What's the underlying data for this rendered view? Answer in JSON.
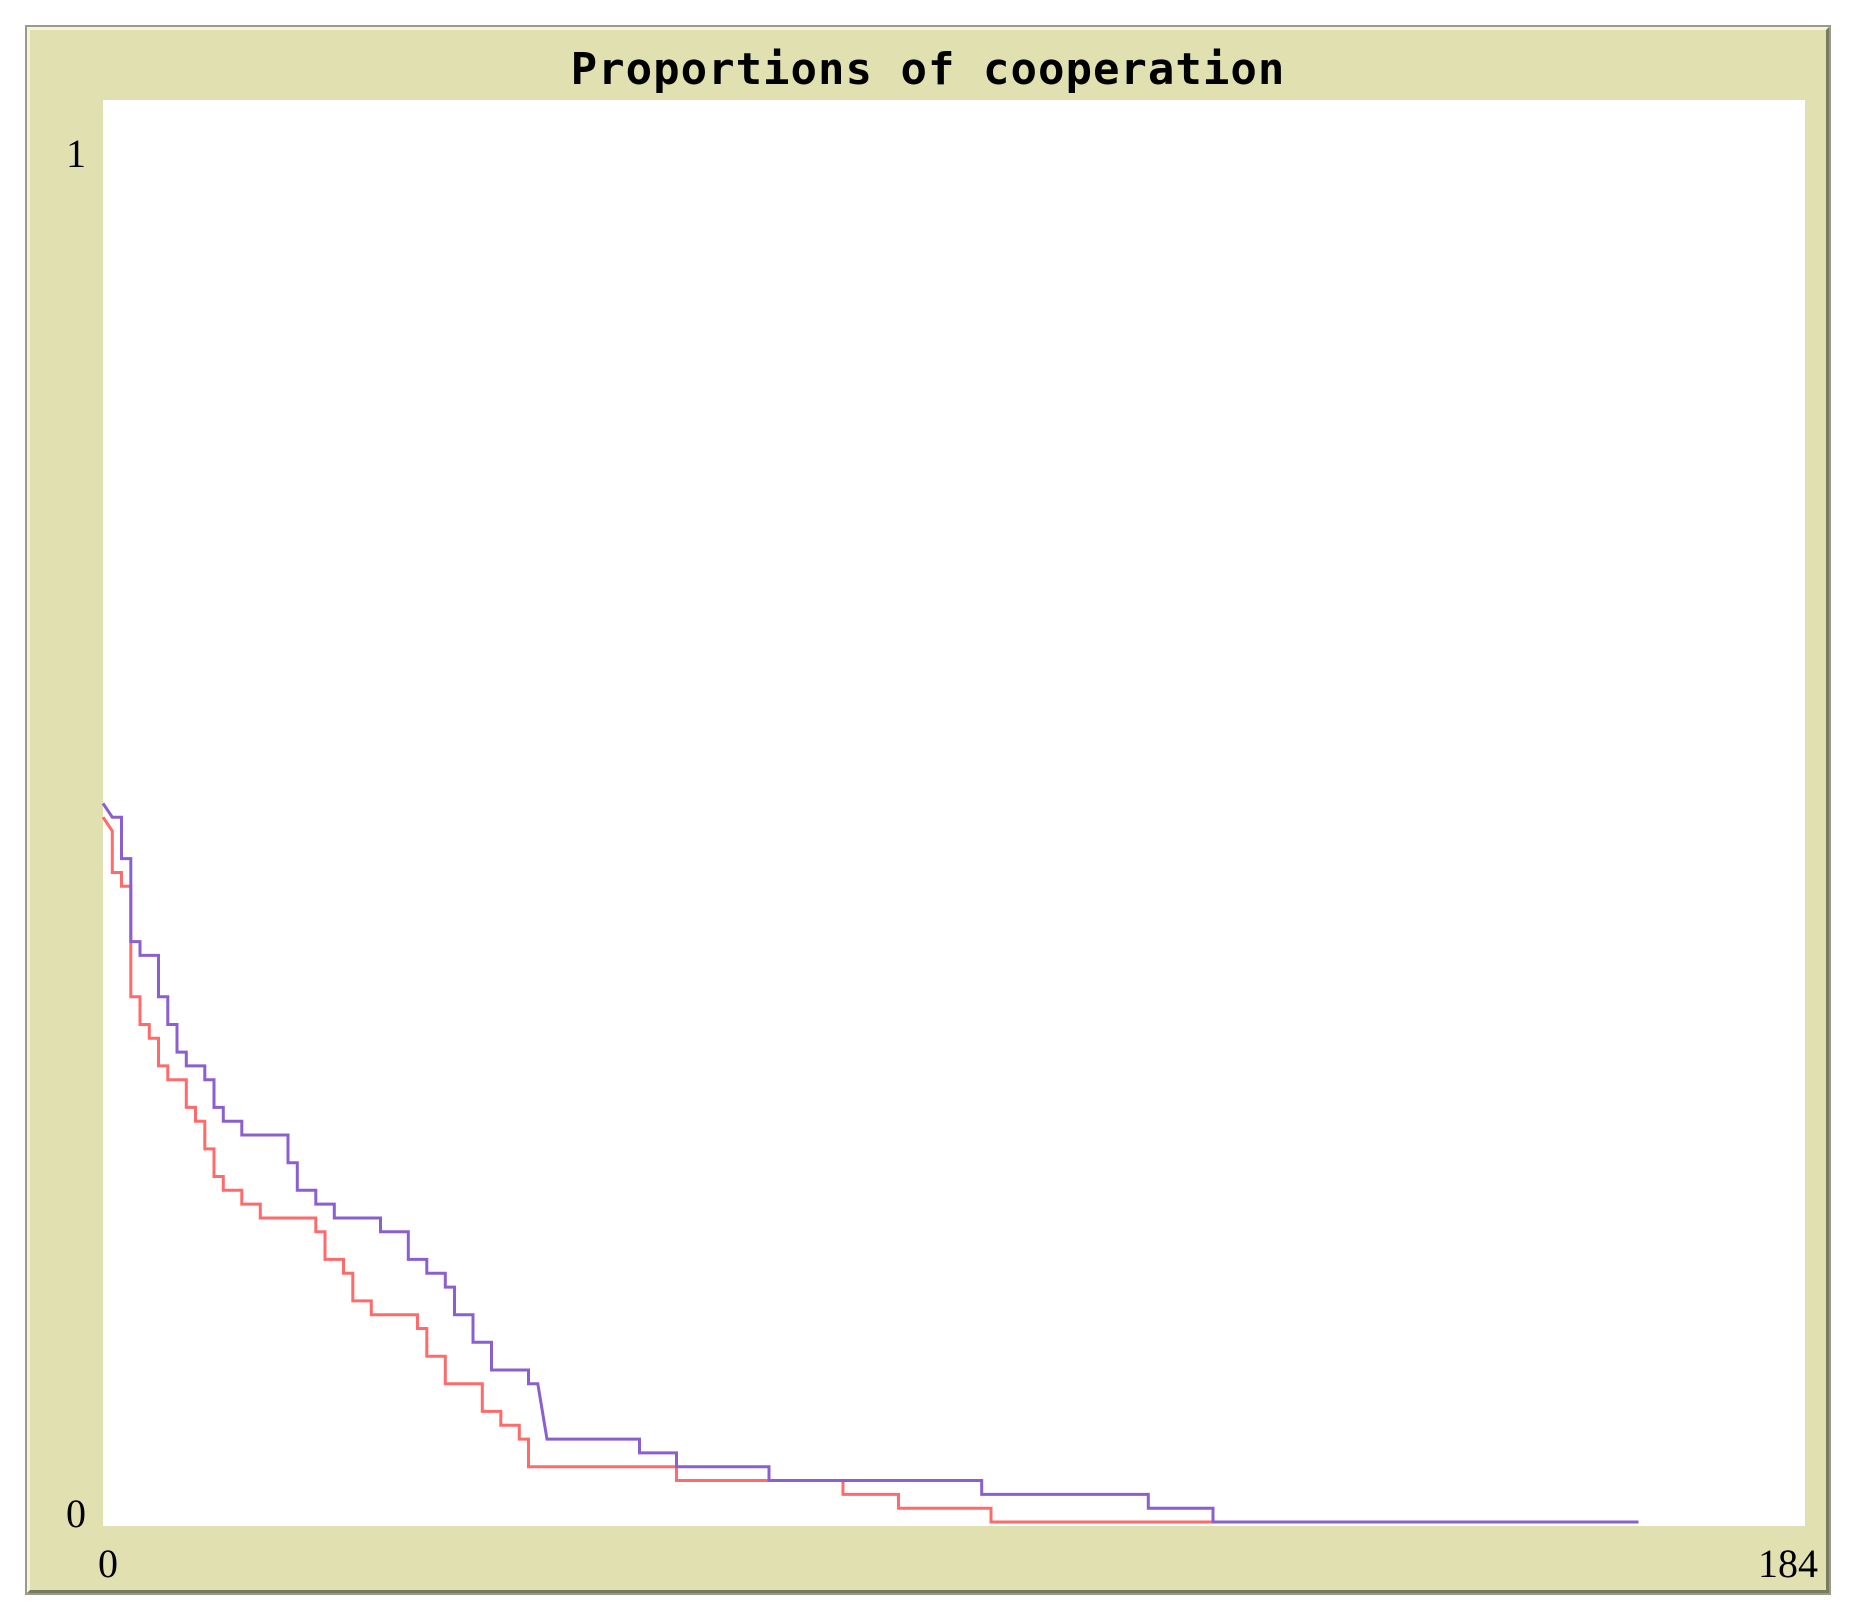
{
  "window": {
    "title": "Proportions of cooperation"
  },
  "chart_data": {
    "type": "line",
    "title": "Proportions of cooperation",
    "xlabel": "",
    "ylabel": "",
    "xlim": [
      0,
      184
    ],
    "ylim": [
      0,
      1
    ],
    "x_tick_labels": [
      "0",
      "184"
    ],
    "y_tick_labels": [
      "0",
      "1"
    ],
    "grid": false,
    "series": [
      {
        "color": "#ff6b6b",
        "points": [
          [
            0,
            0.51
          ],
          [
            1,
            0.5
          ],
          [
            1,
            0.47
          ],
          [
            2,
            0.47
          ],
          [
            2,
            0.46
          ],
          [
            3,
            0.46
          ],
          [
            3,
            0.38
          ],
          [
            4,
            0.38
          ],
          [
            4,
            0.36
          ],
          [
            5,
            0.36
          ],
          [
            5,
            0.35
          ],
          [
            6,
            0.35
          ],
          [
            6,
            0.33
          ],
          [
            7,
            0.33
          ],
          [
            7,
            0.32
          ],
          [
            9,
            0.32
          ],
          [
            9,
            0.3
          ],
          [
            10,
            0.3
          ],
          [
            10,
            0.29
          ],
          [
            11,
            0.29
          ],
          [
            11,
            0.27
          ],
          [
            12,
            0.27
          ],
          [
            12,
            0.25
          ],
          [
            13,
            0.25
          ],
          [
            13,
            0.24
          ],
          [
            15,
            0.24
          ],
          [
            15,
            0.23
          ],
          [
            17,
            0.23
          ],
          [
            17,
            0.22
          ],
          [
            23,
            0.22
          ],
          [
            23,
            0.21
          ],
          [
            24,
            0.21
          ],
          [
            24,
            0.19
          ],
          [
            26,
            0.19
          ],
          [
            26,
            0.18
          ],
          [
            27,
            0.18
          ],
          [
            27,
            0.16
          ],
          [
            29,
            0.16
          ],
          [
            29,
            0.15
          ],
          [
            34,
            0.15
          ],
          [
            34,
            0.14
          ],
          [
            35,
            0.14
          ],
          [
            35,
            0.12
          ],
          [
            37,
            0.12
          ],
          [
            37,
            0.1
          ],
          [
            41,
            0.1
          ],
          [
            41,
            0.08
          ],
          [
            43,
            0.08
          ],
          [
            43,
            0.07
          ],
          [
            45,
            0.07
          ],
          [
            45,
            0.06
          ],
          [
            46,
            0.06
          ],
          [
            46,
            0.04
          ],
          [
            47,
            0.04
          ],
          [
            47,
            0.04
          ],
          [
            62,
            0.04
          ],
          [
            62,
            0.03
          ],
          [
            80,
            0.03
          ],
          [
            80,
            0.02
          ],
          [
            86,
            0.02
          ],
          [
            86,
            0.01
          ],
          [
            96,
            0.01
          ],
          [
            96,
            0.0
          ],
          [
            120,
            0.0
          ]
        ]
      },
      {
        "color": "#8b5fcf",
        "points": [
          [
            0,
            0.52
          ],
          [
            1,
            0.51
          ],
          [
            2,
            0.51
          ],
          [
            2,
            0.48
          ],
          [
            3,
            0.48
          ],
          [
            3,
            0.42
          ],
          [
            4,
            0.42
          ],
          [
            4,
            0.41
          ],
          [
            6,
            0.41
          ],
          [
            6,
            0.38
          ],
          [
            7,
            0.38
          ],
          [
            7,
            0.36
          ],
          [
            8,
            0.36
          ],
          [
            8,
            0.34
          ],
          [
            9,
            0.34
          ],
          [
            9,
            0.33
          ],
          [
            11,
            0.33
          ],
          [
            11,
            0.32
          ],
          [
            12,
            0.32
          ],
          [
            12,
            0.3
          ],
          [
            13,
            0.3
          ],
          [
            13,
            0.29
          ],
          [
            15,
            0.29
          ],
          [
            15,
            0.28
          ],
          [
            20,
            0.28
          ],
          [
            20,
            0.26
          ],
          [
            21,
            0.26
          ],
          [
            21,
            0.24
          ],
          [
            23,
            0.24
          ],
          [
            23,
            0.23
          ],
          [
            25,
            0.23
          ],
          [
            25,
            0.22
          ],
          [
            30,
            0.22
          ],
          [
            30,
            0.21
          ],
          [
            33,
            0.21
          ],
          [
            33,
            0.19
          ],
          [
            35,
            0.19
          ],
          [
            35,
            0.18
          ],
          [
            37,
            0.18
          ],
          [
            37,
            0.17
          ],
          [
            38,
            0.17
          ],
          [
            38,
            0.15
          ],
          [
            40,
            0.15
          ],
          [
            40,
            0.13
          ],
          [
            42,
            0.13
          ],
          [
            42,
            0.11
          ],
          [
            44,
            0.11
          ],
          [
            46,
            0.11
          ],
          [
            46,
            0.1
          ],
          [
            47,
            0.1
          ],
          [
            48,
            0.06
          ],
          [
            58,
            0.06
          ],
          [
            58,
            0.05
          ],
          [
            62,
            0.05
          ],
          [
            62,
            0.04
          ],
          [
            72,
            0.04
          ],
          [
            72,
            0.03
          ],
          [
            95,
            0.03
          ],
          [
            95,
            0.02
          ],
          [
            113,
            0.02
          ],
          [
            113,
            0.01
          ],
          [
            120,
            0.01
          ],
          [
            120,
            0.0
          ],
          [
            166,
            0.0
          ]
        ]
      }
    ]
  }
}
